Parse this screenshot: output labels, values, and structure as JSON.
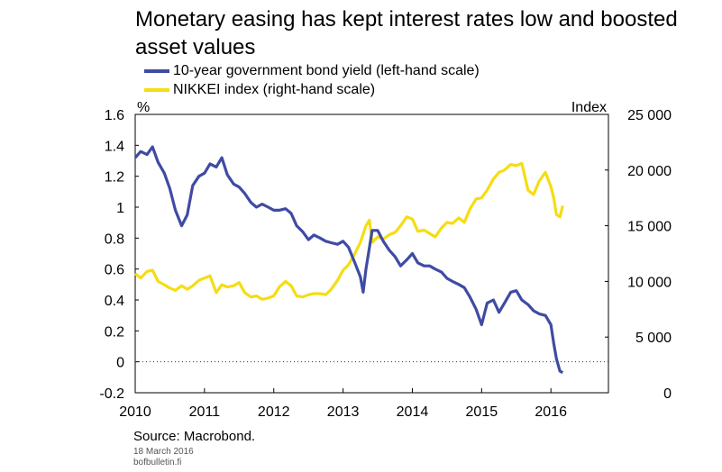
{
  "title": "Monetary easing has kept interest rates low and boosted asset values",
  "legend": [
    {
      "label": "10-year government bond yield (left-hand scale)",
      "color": "#3f4ba3"
    },
    {
      "label": "NIKKEI index (right-hand scale)",
      "color": "#f5dd13"
    }
  ],
  "source": "Source: Macrobond.",
  "date": "18 March 2016",
  "site": "bofbulletin.fi",
  "chart_data": {
    "type": "line",
    "title": "Monetary easing has kept interest rates low and boosted asset values",
    "left_unit": "%",
    "right_unit": "Index",
    "x_ticks": [
      "2010",
      "2011",
      "2012",
      "2013",
      "2014",
      "2015",
      "2016"
    ],
    "left_ticks": [
      "1.6",
      "1.4",
      "1.2",
      "1",
      "0.8",
      "0.6",
      "0.4",
      "0.2",
      "0",
      "-0.2"
    ],
    "right_ticks": [
      "25 000",
      "20 000",
      "15 000",
      "10 000",
      "5 000",
      "0"
    ],
    "xlim": [
      2010.0,
      2016.83
    ],
    "ylim_left": [
      -0.2,
      1.6
    ],
    "ylim_right": [
      0,
      25000
    ],
    "grid": "none",
    "zero_line": "dotted",
    "series": [
      {
        "name": "10-year government bond yield (left-hand scale)",
        "axis": "left",
        "color": "#3f4ba3",
        "points": [
          [
            2010.0,
            1.32
          ],
          [
            2010.08,
            1.36
          ],
          [
            2010.17,
            1.34
          ],
          [
            2010.25,
            1.39
          ],
          [
            2010.33,
            1.29
          ],
          [
            2010.42,
            1.22
          ],
          [
            2010.5,
            1.12
          ],
          [
            2010.58,
            0.98
          ],
          [
            2010.67,
            0.88
          ],
          [
            2010.75,
            0.95
          ],
          [
            2010.83,
            1.14
          ],
          [
            2010.92,
            1.2
          ],
          [
            2011.0,
            1.22
          ],
          [
            2011.08,
            1.28
          ],
          [
            2011.17,
            1.26
          ],
          [
            2011.25,
            1.32
          ],
          [
            2011.33,
            1.21
          ],
          [
            2011.42,
            1.15
          ],
          [
            2011.5,
            1.13
          ],
          [
            2011.58,
            1.09
          ],
          [
            2011.67,
            1.03
          ],
          [
            2011.75,
            1.0
          ],
          [
            2011.83,
            1.02
          ],
          [
            2011.92,
            1.0
          ],
          [
            2012.0,
            0.98
          ],
          [
            2012.08,
            0.98
          ],
          [
            2012.17,
            0.99
          ],
          [
            2012.25,
            0.96
          ],
          [
            2012.33,
            0.88
          ],
          [
            2012.42,
            0.84
          ],
          [
            2012.5,
            0.79
          ],
          [
            2012.58,
            0.82
          ],
          [
            2012.67,
            0.8
          ],
          [
            2012.75,
            0.78
          ],
          [
            2012.83,
            0.77
          ],
          [
            2012.92,
            0.76
          ],
          [
            2013.0,
            0.78
          ],
          [
            2013.08,
            0.74
          ],
          [
            2013.17,
            0.64
          ],
          [
            2013.25,
            0.55
          ],
          [
            2013.29,
            0.45
          ],
          [
            2013.33,
            0.6
          ],
          [
            2013.42,
            0.85
          ],
          [
            2013.5,
            0.85
          ],
          [
            2013.58,
            0.78
          ],
          [
            2013.67,
            0.72
          ],
          [
            2013.75,
            0.68
          ],
          [
            2013.83,
            0.62
          ],
          [
            2013.92,
            0.66
          ],
          [
            2014.0,
            0.7
          ],
          [
            2014.08,
            0.64
          ],
          [
            2014.17,
            0.62
          ],
          [
            2014.25,
            0.62
          ],
          [
            2014.33,
            0.6
          ],
          [
            2014.42,
            0.58
          ],
          [
            2014.5,
            0.54
          ],
          [
            2014.58,
            0.52
          ],
          [
            2014.67,
            0.5
          ],
          [
            2014.75,
            0.48
          ],
          [
            2014.83,
            0.42
          ],
          [
            2014.92,
            0.34
          ],
          [
            2015.0,
            0.24
          ],
          [
            2015.08,
            0.38
          ],
          [
            2015.17,
            0.4
          ],
          [
            2015.25,
            0.32
          ],
          [
            2015.33,
            0.38
          ],
          [
            2015.42,
            0.45
          ],
          [
            2015.5,
            0.46
          ],
          [
            2015.58,
            0.4
          ],
          [
            2015.67,
            0.37
          ],
          [
            2015.75,
            0.33
          ],
          [
            2015.83,
            0.31
          ],
          [
            2015.92,
            0.3
          ],
          [
            2016.0,
            0.24
          ],
          [
            2016.04,
            0.12
          ],
          [
            2016.08,
            0.02
          ],
          [
            2016.13,
            -0.06
          ],
          [
            2016.17,
            -0.07
          ]
        ]
      },
      {
        "name": "NIKKEI index (right-hand scale)",
        "axis": "right",
        "color": "#f5dd13",
        "points": [
          [
            2010.0,
            10700
          ],
          [
            2010.08,
            10300
          ],
          [
            2010.17,
            10900
          ],
          [
            2010.25,
            11000
          ],
          [
            2010.33,
            10000
          ],
          [
            2010.42,
            9700
          ],
          [
            2010.5,
            9400
          ],
          [
            2010.58,
            9200
          ],
          [
            2010.67,
            9600
          ],
          [
            2010.75,
            9300
          ],
          [
            2010.83,
            9600
          ],
          [
            2010.92,
            10100
          ],
          [
            2011.0,
            10300
          ],
          [
            2011.08,
            10500
          ],
          [
            2011.17,
            9000
          ],
          [
            2011.25,
            9700
          ],
          [
            2011.33,
            9500
          ],
          [
            2011.42,
            9600
          ],
          [
            2011.5,
            9900
          ],
          [
            2011.58,
            9000
          ],
          [
            2011.67,
            8600
          ],
          [
            2011.75,
            8700
          ],
          [
            2011.83,
            8400
          ],
          [
            2011.92,
            8500
          ],
          [
            2012.0,
            8700
          ],
          [
            2012.08,
            9500
          ],
          [
            2012.17,
            10000
          ],
          [
            2012.25,
            9600
          ],
          [
            2012.33,
            8700
          ],
          [
            2012.42,
            8600
          ],
          [
            2012.5,
            8800
          ],
          [
            2012.58,
            8900
          ],
          [
            2012.67,
            8900
          ],
          [
            2012.75,
            8800
          ],
          [
            2012.83,
            9300
          ],
          [
            2012.92,
            10100
          ],
          [
            2013.0,
            11000
          ],
          [
            2013.08,
            11500
          ],
          [
            2013.17,
            12500
          ],
          [
            2013.25,
            13500
          ],
          [
            2013.33,
            15000
          ],
          [
            2013.38,
            15500
          ],
          [
            2013.42,
            13500
          ],
          [
            2013.5,
            14000
          ],
          [
            2013.58,
            13800
          ],
          [
            2013.67,
            14200
          ],
          [
            2013.75,
            14400
          ],
          [
            2013.83,
            15000
          ],
          [
            2013.92,
            15800
          ],
          [
            2014.0,
            15600
          ],
          [
            2014.08,
            14500
          ],
          [
            2014.17,
            14600
          ],
          [
            2014.25,
            14300
          ],
          [
            2014.33,
            14000
          ],
          [
            2014.42,
            14800
          ],
          [
            2014.5,
            15300
          ],
          [
            2014.58,
            15200
          ],
          [
            2014.67,
            15700
          ],
          [
            2014.75,
            15300
          ],
          [
            2014.83,
            16500
          ],
          [
            2014.92,
            17400
          ],
          [
            2015.0,
            17500
          ],
          [
            2015.08,
            18200
          ],
          [
            2015.17,
            19200
          ],
          [
            2015.25,
            19800
          ],
          [
            2015.33,
            20000
          ],
          [
            2015.42,
            20500
          ],
          [
            2015.5,
            20400
          ],
          [
            2015.58,
            20600
          ],
          [
            2015.67,
            18200
          ],
          [
            2015.75,
            17800
          ],
          [
            2015.83,
            19000
          ],
          [
            2015.92,
            19800
          ],
          [
            2016.0,
            18500
          ],
          [
            2016.04,
            17500
          ],
          [
            2016.08,
            16000
          ],
          [
            2016.13,
            15800
          ],
          [
            2016.17,
            16800
          ]
        ]
      }
    ]
  }
}
